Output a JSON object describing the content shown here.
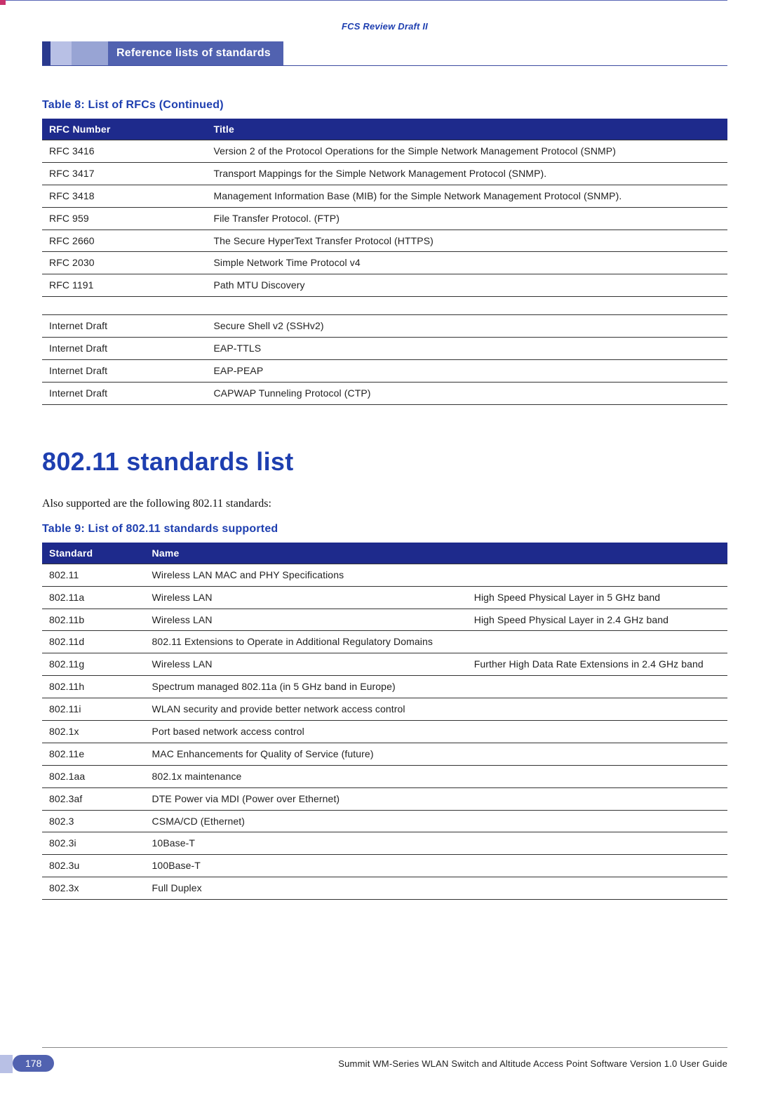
{
  "colors": {
    "brand_blue": "#1e3fb0",
    "header_bg": "#1e2a8c",
    "tab_bg": "#5162b0",
    "light_sq1": "#b8c0e5",
    "light_sq2": "#98a4d4",
    "dark_sq": "#2a3a8e",
    "pink_accent": "#c8326c",
    "text": "#222222",
    "border": "#333333",
    "white": "#ffffff"
  },
  "typography": {
    "heading_family": "Trebuchet MS",
    "body_family": "Georgia",
    "table_fontsize_pt": 10.5,
    "caption_fontsize_pt": 12,
    "h1_fontsize_pt": 27
  },
  "draft_header": "FCS Review Draft II",
  "section_tab": "Reference lists of standards",
  "table8": {
    "caption": "Table 8:  List of RFCs (Continued)",
    "columns": [
      "RFC Number",
      "Title"
    ],
    "col_widths_pct": [
      24,
      76
    ],
    "rows": [
      [
        "RFC 3416",
        "Version 2 of the Protocol Operations for the Simple Network Management Protocol (SNMP)"
      ],
      [
        "RFC 3417",
        "Transport Mappings for the Simple Network Management Protocol (SNMP)."
      ],
      [
        "RFC 3418",
        "Management Information Base (MIB) for the Simple Network Management Protocol (SNMP)."
      ],
      [
        "RFC 959",
        "File Transfer Protocol. (FTP)"
      ],
      [
        "RFC 2660",
        "The Secure HyperText Transfer Protocol (HTTPS)"
      ],
      [
        "RFC 2030",
        "Simple Network Time Protocol v4"
      ],
      [
        "RFC 1191",
        "Path MTU Discovery"
      ],
      [
        "",
        ""
      ],
      [
        "Internet Draft",
        "Secure Shell v2 (SSHv2)"
      ],
      [
        "Internet Draft",
        "EAP-TTLS"
      ],
      [
        "Internet Draft",
        "EAP-PEAP"
      ],
      [
        "Internet Draft",
        "CAPWAP Tunneling Protocol (CTP)"
      ]
    ]
  },
  "section_heading": "802.11 standards list",
  "intro_text": "Also supported are the following 802.11 standards:",
  "table9": {
    "caption": "Table 9:  List of 802.11 standards supported",
    "columns": [
      "Standard",
      "Name",
      ""
    ],
    "col_widths_pct": [
      15,
      47,
      38
    ],
    "rows": [
      [
        "802.11",
        "Wireless LAN MAC and PHY Specifications",
        ""
      ],
      [
        "802.11a",
        "Wireless LAN",
        "High Speed Physical Layer in 5 GHz band"
      ],
      [
        "802.11b",
        "Wireless LAN",
        "High Speed Physical Layer in 2.4 GHz band"
      ],
      [
        "802.11d",
        "802.11 Extensions to Operate in Additional Regulatory Domains",
        ""
      ],
      [
        "802.11g",
        "Wireless LAN",
        "Further High Data Rate Extensions in 2.4 GHz band"
      ],
      [
        "802.11h",
        "Spectrum managed 802.11a (in 5 GHz band in Europe)",
        ""
      ],
      [
        "802.11i",
        "WLAN security and provide better network access control",
        ""
      ],
      [
        "802.1x",
        "Port based network access control",
        ""
      ],
      [
        "802.11e",
        "MAC Enhancements for Quality of Service (future)",
        ""
      ],
      [
        "802.1aa",
        "802.1x maintenance",
        ""
      ],
      [
        "802.3af",
        "DTE Power via MDI (Power over Ethernet)",
        ""
      ],
      [
        "802.3",
        "CSMA/CD (Ethernet)",
        ""
      ],
      [
        "802.3i",
        "10Base-T",
        ""
      ],
      [
        "802.3u",
        "100Base-T",
        ""
      ],
      [
        "802.3x",
        "Full Duplex",
        ""
      ]
    ]
  },
  "footer": {
    "page": "178",
    "guide": "Summit WM-Series WLAN Switch and Altitude Access Point Software Version 1.0 User Guide"
  }
}
